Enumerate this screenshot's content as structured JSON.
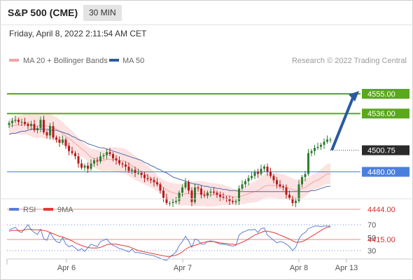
{
  "header": {
    "title": "S&P 500 (CME)",
    "timeframe": "30 MIN"
  },
  "datetime": "Friday, April 8, 2022 2:11:54 AM CET",
  "colors": {
    "resistance": "#5aa81e",
    "pivot": "#4a7fe0",
    "support": "#f08a8a",
    "price_tag": "#2b2b2b",
    "arrow": "#2a5aa0",
    "candle_up": "#2e7d32",
    "candle_down": "#b71c1c",
    "band_fill": "#fbd8d8",
    "ma20": "#f4a3a3",
    "ma50": "#4a6aa8",
    "rsi": "#5b7fd6",
    "rsi_ma": "#e53935"
  },
  "chart_data": [
    {
      "type": "line",
      "name": "price-panel",
      "title": "",
      "legend": [
        {
          "name": "MA 20 + Bollinger Bands",
          "color": "#f4a3a3"
        },
        {
          "name": "MA 50",
          "color": "#2e5a9e"
        }
      ],
      "legend_placement": "top-left",
      "watermark": "Research © 2022 Trading Central",
      "ylim": [
        4400,
        4600
      ],
      "x_ticks": [
        "Apr 6",
        "Apr 7",
        "Apr 8",
        "Apr 13"
      ],
      "levels": [
        {
          "label": "4555.00",
          "value": 4555,
          "role": "resistance"
        },
        {
          "label": "4536.00",
          "value": 4536,
          "role": "resistance"
        },
        {
          "label": "4500.75",
          "value": 4500.75,
          "role": "last-price"
        },
        {
          "label": "4480.00",
          "value": 4480,
          "role": "pivot"
        },
        {
          "label": "4444.00",
          "value": 4444,
          "role": "support"
        },
        {
          "label": "4415.00",
          "value": 4415,
          "role": "support"
        }
      ],
      "projection": {
        "from": 4500.75,
        "to": 4555
      },
      "close": [
        4527,
        4529,
        4530,
        4528,
        4528,
        4526,
        4524,
        4526,
        4520,
        4522,
        4530,
        4518,
        4515,
        4524,
        4513,
        4511,
        4508,
        4511,
        4505,
        4500,
        4498,
        4495,
        4488,
        4484,
        4486,
        4483,
        4488,
        4491,
        4490,
        4495,
        4496,
        4499,
        4497,
        4493,
        4491,
        4488,
        4487,
        4485,
        4481,
        4482,
        4479,
        4479,
        4477,
        4474,
        4473,
        4472,
        4470,
        4468,
        4462,
        4455,
        4450,
        4450,
        4451,
        4452,
        4460,
        4465,
        4470,
        4462,
        4451,
        4465,
        4464,
        4458,
        4457,
        4460,
        4461,
        4460,
        4458,
        4456,
        4455,
        4454,
        4452,
        4451,
        4452,
        4464,
        4468,
        4471,
        4474,
        4476,
        4480,
        4478,
        4483,
        4485,
        4480,
        4476,
        4472,
        4468,
        4466,
        4465,
        4458,
        4455,
        4450,
        4452,
        4468,
        4475,
        4478,
        4498,
        4500,
        4503,
        4504,
        4506,
        4509,
        4511,
        4511
      ],
      "ma20": [
        4524,
        4524,
        4525,
        4525,
        4525,
        4526,
        4526,
        4525,
        4524,
        4524,
        4525,
        4524,
        4524,
        4524,
        4522,
        4521,
        4519,
        4517,
        4514,
        4512,
        4510,
        4507,
        4505,
        4502,
        4500,
        4497,
        4494,
        4493,
        4492,
        4491,
        4491,
        4492,
        4492,
        4492,
        4492,
        4491,
        4491,
        4490,
        4488,
        4486,
        4484,
        4482,
        4480,
        4478,
        4476,
        4474,
        4472,
        4469,
        4467,
        4465,
        4463,
        4461,
        4460,
        4459,
        4458,
        4458,
        4459,
        4459,
        4459,
        4459,
        4459,
        4459,
        4459,
        4458,
        4458,
        4458,
        4458,
        4458,
        4458,
        4457,
        4457,
        4456,
        4456,
        4456,
        4457,
        4458,
        4459,
        4460,
        4461,
        4462,
        4464,
        4466,
        4467,
        4467,
        4467,
        4467,
        4466,
        4466,
        4465,
        4464,
        4463,
        4462,
        4463,
        4464,
        4465,
        4467,
        4469,
        4471,
        4472,
        4474,
        4476,
        4478,
        4478
      ],
      "ma50": [
        4516,
        4517,
        4517,
        4518,
        4519,
        4519,
        4520,
        4521,
        4521,
        4521,
        4521,
        4521,
        4521,
        4520,
        4520,
        4520,
        4519,
        4518,
        4517,
        4516,
        4514,
        4513,
        4511,
        4510,
        4509,
        4507,
        4506,
        4505,
        4504,
        4503,
        4503,
        4502,
        4501,
        4500,
        4499,
        4498,
        4497,
        4496,
        4495,
        4494,
        4493,
        4492,
        4491,
        4489,
        4488,
        4486,
        4485,
        4483,
        4482,
        4480,
        4479,
        4477,
        4475,
        4474,
        4473,
        4472,
        4471,
        4470,
        4469,
        4468,
        4468,
        4467,
        4466,
        4466,
        4465,
        4465,
        4464,
        4464,
        4463,
        4463,
        4462,
        4462,
        4462,
        4461,
        4461,
        4461,
        4461,
        4461,
        4461,
        4461,
        4461,
        4461,
        4461,
        4461,
        4461,
        4461,
        4461,
        4461,
        4461,
        4461,
        4461,
        4461,
        4461,
        4461,
        4461,
        4461,
        4462,
        4462,
        4463,
        4464,
        4465,
        4466,
        4466
      ]
    },
    {
      "type": "line",
      "name": "rsi-panel",
      "title": "",
      "legend": [
        {
          "name": "RSI",
          "color": "#5b7fd6"
        },
        {
          "name": "9MA",
          "color": "#e53935"
        }
      ],
      "legend_placement": "top-left",
      "ylim": [
        10,
        80
      ],
      "y_ticks": [
        "70",
        "50",
        "30"
      ],
      "rsi": [
        62,
        64,
        66,
        60,
        58,
        64,
        70,
        62,
        58,
        55,
        63,
        48,
        46,
        58,
        50,
        44,
        42,
        50,
        40,
        36,
        38,
        34,
        30,
        33,
        29,
        34,
        40,
        38,
        36,
        44,
        46,
        48,
        42,
        38,
        36,
        33,
        32,
        30,
        28,
        32,
        27,
        27,
        26,
        25,
        24,
        23,
        22,
        20,
        18,
        16,
        15,
        20,
        24,
        28,
        38,
        44,
        52,
        45,
        35,
        48,
        46,
        40,
        40,
        44,
        45,
        44,
        42,
        40,
        40,
        39,
        38,
        37,
        38,
        54,
        58,
        60,
        62,
        62,
        63,
        58,
        64,
        65,
        54,
        50,
        46,
        42,
        44,
        43,
        40,
        36,
        30,
        35,
        48,
        55,
        58,
        64,
        66,
        68,
        68,
        67,
        68,
        68,
        68
      ],
      "rsi_ma": [
        60,
        61,
        61,
        61,
        61,
        62,
        63,
        63,
        62,
        62,
        62,
        61,
        60,
        58,
        56,
        54,
        52,
        51,
        49,
        47,
        45,
        42,
        40,
        38,
        36,
        35,
        34,
        34,
        34,
        35,
        37,
        39,
        40,
        40,
        40,
        39,
        38,
        37,
        36,
        34,
        32,
        30,
        29,
        28,
        27,
        26,
        25,
        24,
        23,
        22,
        21,
        21,
        22,
        23,
        25,
        28,
        32,
        35,
        37,
        38,
        40,
        42,
        43,
        44,
        44,
        44,
        43,
        42,
        41,
        41,
        40,
        40,
        39,
        41,
        43,
        45,
        48,
        51,
        54,
        56,
        58,
        60,
        60,
        59,
        58,
        56,
        54,
        52,
        50,
        48,
        45,
        43,
        43,
        44,
        46,
        49,
        52,
        55,
        58,
        61,
        64,
        66,
        67
      ]
    }
  ]
}
